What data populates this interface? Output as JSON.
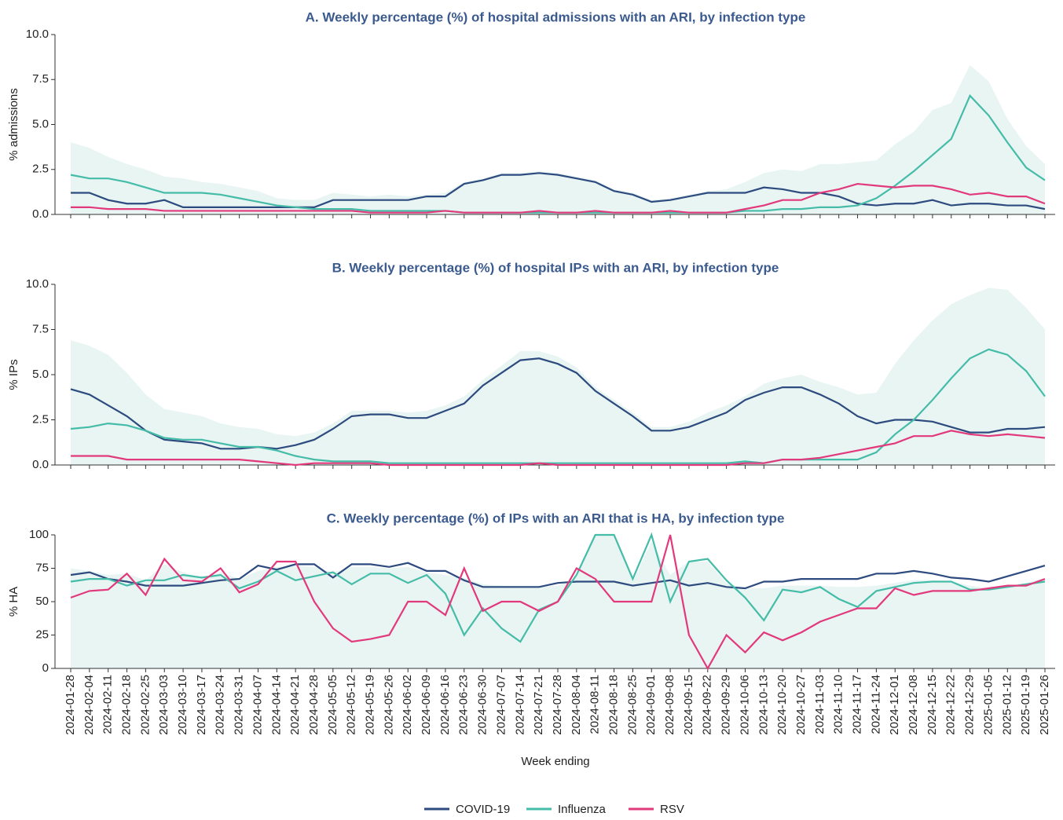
{
  "chart_data": [
    {
      "type": "line",
      "title": "A. Weekly percentage (%) of hospital admissions with an ARI, by infection type",
      "y_label": "% admissions",
      "ylim": [
        0,
        10
      ],
      "yticks": [
        {
          "value": 0,
          "label": "0.0"
        },
        {
          "value": 2.5,
          "label": "2.5"
        },
        {
          "value": 5,
          "label": "5.0"
        },
        {
          "value": 7.5,
          "label": "7.5"
        },
        {
          "value": 10,
          "label": "10.0"
        }
      ],
      "band": {
        "color": "#e8f5f3",
        "values": [
          4.0,
          3.7,
          3.2,
          2.8,
          2.5,
          2.1,
          2.0,
          1.8,
          1.7,
          1.5,
          1.3,
          0.9,
          0.8,
          0.8,
          1.2,
          1.1,
          1.0,
          1.1,
          1.0,
          1.1,
          1.2,
          1.8,
          2.0,
          2.3,
          2.3,
          2.4,
          2.3,
          2.1,
          1.9,
          1.4,
          1.2,
          0.8,
          0.9,
          1.1,
          1.3,
          1.4,
          1.8,
          2.3,
          2.5,
          2.4,
          2.8,
          2.8,
          2.9,
          3.0,
          3.9,
          4.6,
          5.8,
          6.2,
          8.3,
          7.4,
          5.3,
          3.8,
          2.8
        ]
      },
      "series": [
        {
          "name": "COVID-19",
          "color": "#2d4b7e",
          "values": [
            1.2,
            1.2,
            0.8,
            0.6,
            0.6,
            0.8,
            0.4,
            0.4,
            0.4,
            0.4,
            0.4,
            0.4,
            0.4,
            0.4,
            0.8,
            0.8,
            0.8,
            0.8,
            0.8,
            1.0,
            1.0,
            1.7,
            1.9,
            2.2,
            2.2,
            2.3,
            2.2,
            2.0,
            1.8,
            1.3,
            1.1,
            0.7,
            0.8,
            1.0,
            1.2,
            1.2,
            1.2,
            1.5,
            1.4,
            1.2,
            1.2,
            1.0,
            0.6,
            0.5,
            0.6,
            0.6,
            0.8,
            0.5,
            0.6,
            0.6,
            0.5,
            0.5,
            0.3
          ]
        },
        {
          "name": "Influenza",
          "color": "#45bca8",
          "values": [
            2.2,
            2.0,
            2.0,
            1.8,
            1.5,
            1.2,
            1.2,
            1.2,
            1.1,
            0.9,
            0.7,
            0.5,
            0.4,
            0.3,
            0.3,
            0.3,
            0.2,
            0.2,
            0.2,
            0.2,
            0.2,
            0.1,
            0.1,
            0.1,
            0.1,
            0.1,
            0.1,
            0.1,
            0.1,
            0.1,
            0.1,
            0.1,
            0.1,
            0.1,
            0.1,
            0.1,
            0.2,
            0.2,
            0.3,
            0.3,
            0.4,
            0.4,
            0.5,
            0.9,
            1.6,
            2.4,
            3.3,
            4.2,
            6.6,
            5.5,
            4.0,
            2.6,
            1.9
          ]
        },
        {
          "name": "RSV",
          "color": "#e2397c",
          "values": [
            0.4,
            0.4,
            0.3,
            0.3,
            0.3,
            0.2,
            0.2,
            0.2,
            0.2,
            0.2,
            0.2,
            0.2,
            0.2,
            0.2,
            0.2,
            0.2,
            0.1,
            0.1,
            0.1,
            0.1,
            0.2,
            0.1,
            0.1,
            0.1,
            0.1,
            0.2,
            0.1,
            0.1,
            0.2,
            0.1,
            0.1,
            0.1,
            0.2,
            0.1,
            0.1,
            0.1,
            0.3,
            0.5,
            0.8,
            0.8,
            1.2,
            1.4,
            1.7,
            1.6,
            1.5,
            1.6,
            1.6,
            1.4,
            1.1,
            1.2,
            1.0,
            1.0,
            0.6
          ]
        }
      ]
    },
    {
      "type": "line",
      "title": "B. Weekly percentage (%) of hospital IPs with an ARI, by infection type",
      "y_label": "% IPs",
      "ylim": [
        0,
        10
      ],
      "yticks": [
        {
          "value": 0,
          "label": "0.0"
        },
        {
          "value": 2.5,
          "label": "2.5"
        },
        {
          "value": 5,
          "label": "5.0"
        },
        {
          "value": 7.5,
          "label": "7.5"
        },
        {
          "value": 10,
          "label": "10.0"
        }
      ],
      "band": {
        "color": "#e8f5f3",
        "values": [
          6.9,
          6.6,
          6.1,
          5.1,
          3.9,
          3.1,
          2.9,
          2.7,
          2.3,
          2.1,
          2.0,
          1.7,
          1.6,
          1.8,
          2.3,
          3.0,
          3.0,
          3.0,
          2.9,
          3.0,
          3.3,
          3.8,
          4.7,
          5.5,
          6.3,
          6.3,
          6.0,
          5.4,
          4.3,
          3.6,
          2.9,
          2.1,
          2.1,
          2.4,
          2.9,
          3.3,
          3.8,
          4.5,
          4.8,
          5.0,
          4.6,
          4.3,
          3.9,
          4.0,
          5.6,
          6.9,
          8.0,
          8.9,
          9.4,
          9.8,
          9.7,
          8.7,
          7.5
        ]
      },
      "series": [
        {
          "color": "#2d4b7e",
          "values": [
            4.2,
            3.9,
            3.3,
            2.7,
            1.9,
            1.4,
            1.3,
            1.2,
            0.9,
            0.9,
            1.0,
            0.9,
            1.1,
            1.4,
            2.0,
            2.7,
            2.8,
            2.8,
            2.6,
            2.6,
            3.0,
            3.4,
            4.4,
            5.1,
            5.8,
            5.9,
            5.6,
            5.1,
            4.1,
            3.4,
            2.7,
            1.9,
            1.9,
            2.1,
            2.5,
            2.9,
            3.6,
            4.0,
            4.3,
            4.3,
            3.9,
            3.4,
            2.7,
            2.3,
            2.5,
            2.5,
            2.4,
            2.1,
            1.8,
            1.8,
            2.0,
            2.0,
            2.1
          ]
        },
        {
          "color": "#45bca8",
          "values": [
            2.0,
            2.1,
            2.3,
            2.2,
            1.9,
            1.5,
            1.4,
            1.4,
            1.2,
            1.0,
            1.0,
            0.8,
            0.5,
            0.3,
            0.2,
            0.2,
            0.2,
            0.1,
            0.1,
            0.1,
            0.1,
            0.1,
            0.1,
            0.1,
            0.1,
            0.1,
            0.1,
            0.1,
            0.1,
            0.1,
            0.1,
            0.1,
            0.1,
            0.1,
            0.1,
            0.1,
            0.2,
            0.1,
            0.3,
            0.3,
            0.3,
            0.3,
            0.3,
            0.7,
            1.7,
            2.5,
            3.6,
            4.8,
            5.9,
            6.4,
            6.1,
            5.2,
            3.8
          ]
        },
        {
          "color": "#e2397c",
          "values": [
            0.5,
            0.5,
            0.5,
            0.3,
            0.3,
            0.3,
            0.3,
            0.3,
            0.3,
            0.3,
            0.2,
            0.1,
            0.0,
            0.1,
            0.1,
            0.1,
            0.1,
            0.0,
            0.0,
            0.0,
            0.0,
            0.0,
            0.0,
            0.0,
            0.0,
            0.1,
            0.0,
            0.0,
            0.0,
            0.0,
            0.0,
            0.0,
            0.0,
            0.0,
            0.0,
            0.0,
            0.1,
            0.1,
            0.3,
            0.3,
            0.4,
            0.6,
            0.8,
            1.0,
            1.2,
            1.6,
            1.6,
            1.9,
            1.7,
            1.6,
            1.7,
            1.6,
            1.5
          ]
        }
      ]
    },
    {
      "type": "line",
      "title": "C. Weekly percentage (%) of IPs with an ARI that is HA, by infection type",
      "y_label": "% HA",
      "x_label": "Week ending",
      "categories": [
        "2024-01-28",
        "2024-02-04",
        "2024-02-11",
        "2024-02-18",
        "2024-02-25",
        "2024-03-03",
        "2024-03-10",
        "2024-03-17",
        "2024-03-24",
        "2024-03-31",
        "2024-04-07",
        "2024-04-14",
        "2024-04-21",
        "2024-04-28",
        "2024-05-05",
        "2024-05-12",
        "2024-05-19",
        "2024-05-26",
        "2024-06-02",
        "2024-06-09",
        "2024-06-16",
        "2024-06-23",
        "2024-06-30",
        "2024-07-07",
        "2024-07-14",
        "2024-07-21",
        "2024-07-28",
        "2024-08-04",
        "2024-08-11",
        "2024-08-18",
        "2024-08-25",
        "2024-09-01",
        "2024-09-08",
        "2024-09-15",
        "2024-09-22",
        "2024-09-29",
        "2024-10-06",
        "2024-10-13",
        "2024-10-20",
        "2024-10-27",
        "2024-11-03",
        "2024-11-10",
        "2024-11-17",
        "2024-11-24",
        "2024-12-01",
        "2024-12-08",
        "2024-12-15",
        "2024-12-22",
        "2024-12-29",
        "2025-01-05",
        "2025-01-12",
        "2025-01-19",
        "2025-01-26"
      ],
      "ylim": [
        0,
        100
      ],
      "yticks": [
        0,
        25,
        50,
        75,
        100
      ],
      "band": {
        "color": "#e8f5f3",
        "values": [
          75,
          73,
          70,
          71,
          66,
          78,
          72,
          68,
          72,
          67,
          73,
          76,
          77,
          76,
          72,
          76,
          76,
          75,
          76,
          72,
          70,
          68,
          63,
          62,
          61,
          61,
          62,
          68,
          100,
          100,
          65,
          95,
          70,
          80,
          80,
          64,
          60,
          60,
          62,
          62,
          62,
          61,
          61,
          62,
          64,
          66,
          66,
          65,
          62,
          60,
          62,
          64,
          68
        ]
      },
      "series": [
        {
          "color": "#2d4b7e",
          "values": [
            70,
            72,
            67,
            65,
            62,
            62,
            62,
            64,
            66,
            67,
            77,
            74,
            78,
            78,
            68,
            78,
            78,
            76,
            79,
            73,
            73,
            66,
            61,
            61,
            61,
            61,
            64,
            65,
            65,
            65,
            62,
            64,
            66,
            62,
            64,
            61,
            60,
            65,
            65,
            67,
            67,
            67,
            67,
            71,
            71,
            73,
            71,
            68,
            67,
            65,
            69,
            73,
            77
          ]
        },
        {
          "color": "#45bca8",
          "values": [
            65,
            67,
            67,
            62,
            66,
            66,
            70,
            68,
            70,
            60,
            65,
            73,
            66,
            69,
            72,
            63,
            71,
            71,
            64,
            70,
            56,
            25,
            45,
            30,
            20,
            44,
            50,
            70,
            100,
            100,
            67,
            100,
            50,
            80,
            82,
            66,
            53,
            36,
            59,
            57,
            61,
            52,
            46,
            58,
            61,
            64,
            65,
            65,
            59,
            59,
            61,
            63,
            65
          ]
        },
        {
          "color": "#e2397c",
          "values": [
            53,
            58,
            59,
            71,
            55,
            82,
            66,
            65,
            75,
            57,
            63,
            80,
            80,
            50,
            30,
            20,
            22,
            25,
            50,
            50,
            40,
            75,
            43,
            50,
            50,
            43,
            50,
            75,
            67,
            50,
            50,
            50,
            100,
            25,
            0,
            25,
            12,
            27,
            21,
            27,
            35,
            40,
            45,
            45,
            60,
            55,
            58,
            58,
            58,
            60,
            62,
            62,
            67
          ]
        }
      ]
    }
  ]
}
